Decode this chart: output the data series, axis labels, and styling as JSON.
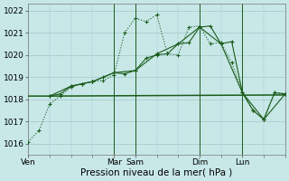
{
  "background_color": "#c8e8e8",
  "grid_color": "#a0c8c8",
  "line_color": "#1a5c1a",
  "xlim": [
    0,
    120
  ],
  "ylim": [
    1015.5,
    1022.3
  ],
  "yticks": [
    1016,
    1017,
    1018,
    1019,
    1020,
    1021,
    1022
  ],
  "xtick_positions": [
    0,
    40,
    50,
    80,
    100
  ],
  "xtick_labels": [
    "Ven",
    "Mar",
    "Sam",
    "Dim",
    "Lun"
  ],
  "xlabel": "Pression niveau de la mer( hPa )",
  "vlines": [
    40,
    50,
    80,
    100
  ],
  "tick_fontsize": 6.5,
  "xlabel_fontsize": 7.5,
  "series": [
    {
      "x": [
        0,
        5,
        10,
        15,
        20,
        25,
        30,
        35,
        40,
        45,
        50,
        55,
        60,
        65,
        70,
        75,
        80,
        85,
        90,
        95,
        100,
        105,
        110,
        115,
        120
      ],
      "y": [
        1016.1,
        1016.6,
        1017.8,
        1018.15,
        1018.55,
        1018.7,
        1018.8,
        1018.85,
        1019.1,
        1021.0,
        1021.65,
        1021.5,
        1021.8,
        1020.05,
        1020.0,
        1021.25,
        1021.3,
        1020.5,
        1020.55,
        1019.65,
        1018.3,
        1017.5,
        1017.1,
        1018.3,
        1018.25
      ],
      "linestyle": "dotted",
      "marker": "+",
      "linewidth": 0.8,
      "markersize": 3.0
    },
    {
      "x": [
        10,
        15,
        20,
        25,
        30,
        35,
        40,
        45,
        50,
        55,
        60,
        65,
        70,
        75,
        80,
        85,
        90,
        95,
        100,
        105,
        110,
        115,
        120
      ],
      "y": [
        1018.15,
        1018.25,
        1018.6,
        1018.7,
        1018.8,
        1019.0,
        1019.2,
        1019.15,
        1019.3,
        1019.85,
        1020.0,
        1020.05,
        1020.5,
        1020.55,
        1021.25,
        1021.3,
        1020.5,
        1020.6,
        1018.3,
        1017.5,
        1017.1,
        1018.3,
        1018.25
      ],
      "linestyle": "solid",
      "marker": "+",
      "linewidth": 0.8,
      "markersize": 3.0
    },
    {
      "x": [
        10,
        20,
        30,
        40,
        50,
        60,
        70,
        80,
        90,
        100,
        110,
        120
      ],
      "y": [
        1018.15,
        1018.6,
        1018.8,
        1019.2,
        1019.3,
        1020.05,
        1020.5,
        1021.25,
        1020.5,
        1018.3,
        1017.1,
        1018.25
      ],
      "linestyle": "solid",
      "marker": "+",
      "linewidth": 0.8,
      "markersize": 3.5
    },
    {
      "x": [
        0,
        10,
        120
      ],
      "y": [
        1018.15,
        1018.15,
        1018.2
      ],
      "linestyle": "solid",
      "marker": null,
      "linewidth": 1.1,
      "markersize": 0
    }
  ]
}
